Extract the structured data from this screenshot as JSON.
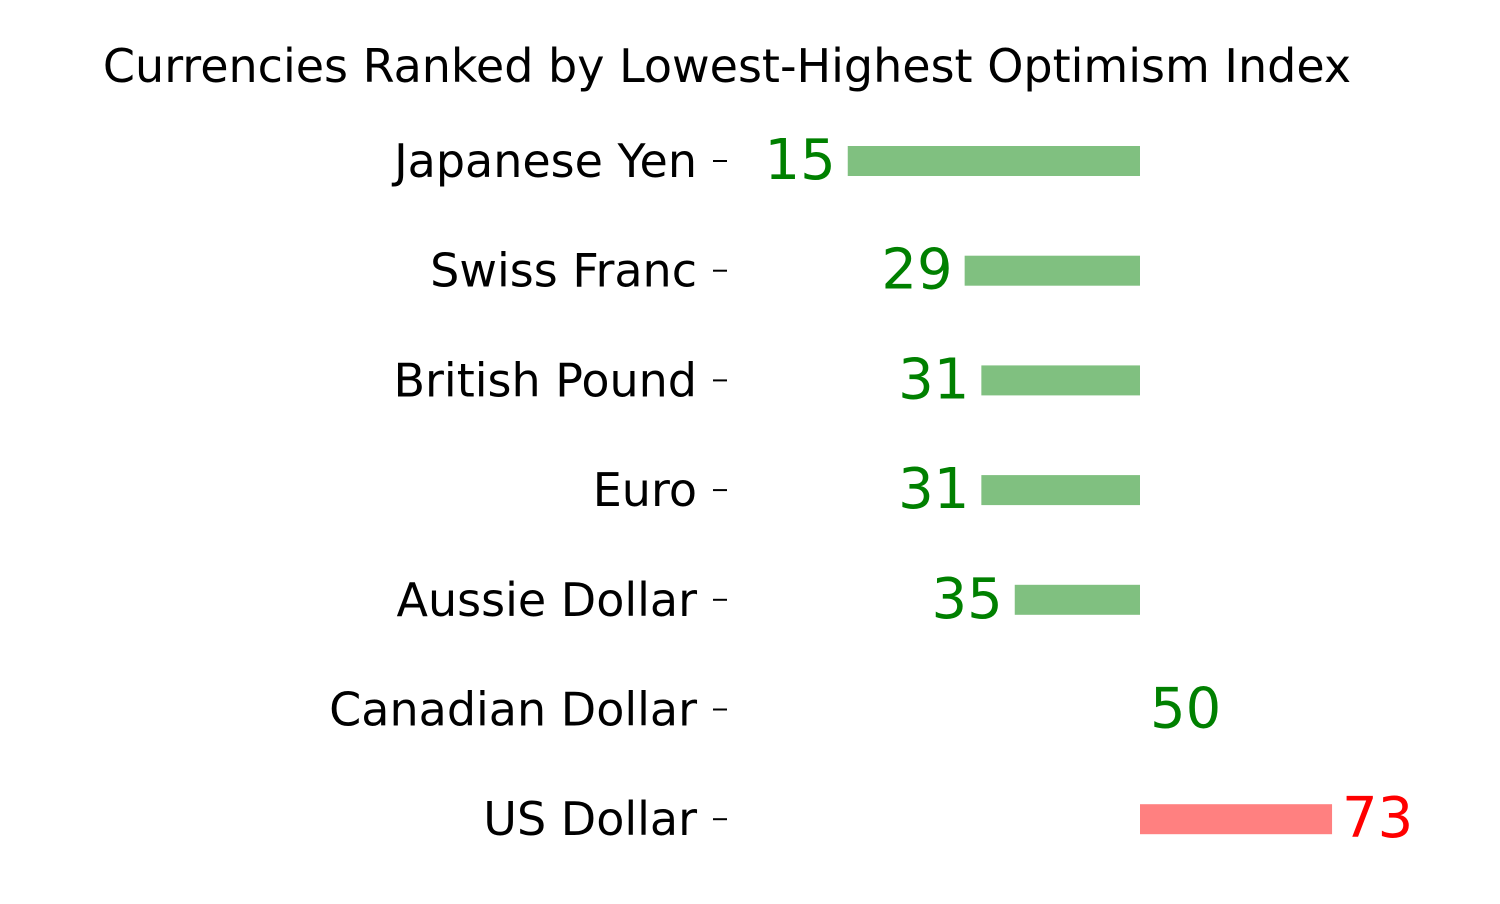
{
  "chart_data": {
    "type": "bar",
    "orientation": "horizontal",
    "title": "Currencies Ranked by Lowest-Highest Optimism Index",
    "xlabel": "",
    "ylabel": "",
    "baseline": 50,
    "grid": false,
    "legend": "none",
    "categories": [
      "Japanese Yen",
      "Swiss Franc",
      "British Pound",
      "Euro",
      "Aussie Dollar",
      "Canadian Dollar",
      "US Dollar"
    ],
    "values": [
      15,
      29,
      31,
      31,
      35,
      50,
      73
    ],
    "labels": [
      "15",
      "29",
      "31",
      "31",
      "35",
      "50",
      "73"
    ],
    "colors": {
      "below_baseline_bar": "#80c080",
      "below_baseline_text": "#008000",
      "above_baseline_bar": "#ff8080",
      "above_baseline_text": "#ff0000",
      "text": "#000000"
    }
  }
}
